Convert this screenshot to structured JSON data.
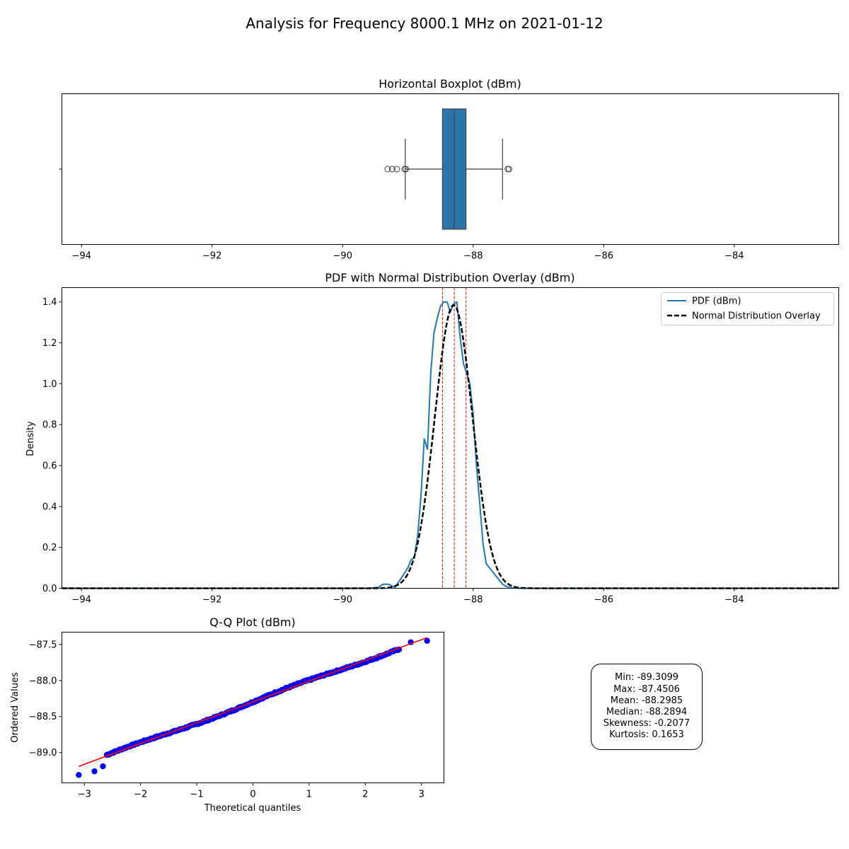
{
  "suptitle": "Analysis for Frequency 8000.1 MHz on 2021-01-12",
  "chart_data": [
    {
      "type": "boxplot",
      "title": "Horizontal Boxplot (dBm)",
      "orientation": "horizontal",
      "xlim": [
        -94.3,
        -82.4
      ],
      "xticks": [
        -94,
        -92,
        -90,
        -88,
        -86,
        -84
      ],
      "box": {
        "q1": -88.47,
        "median": -88.2894,
        "q3": -88.11,
        "whisker_low": -89.04,
        "whisker_high": -87.55
      },
      "outliers": [
        -89.31,
        -89.24,
        -89.17,
        -89.05,
        -89.03,
        -87.47,
        -87.45
      ],
      "color": "#2e75aa"
    },
    {
      "type": "line",
      "title": "PDF with Normal Distribution Overlay (dBm)",
      "ylabel": "Density",
      "xlim": [
        -94.3,
        -82.4
      ],
      "ylim": [
        0,
        1.47
      ],
      "xticks": [
        -94,
        -92,
        -90,
        -88,
        -86,
        -84
      ],
      "yticks": [
        0.0,
        0.2,
        0.4,
        0.6,
        0.8,
        1.0,
        1.2,
        1.4
      ],
      "legend_position": "top-right",
      "series": [
        {
          "name": "PDF (dBm)",
          "color": "#1f77b4",
          "style": "solid",
          "x": [
            -94.3,
            -89.6,
            -89.45,
            -89.38,
            -89.3,
            -89.2,
            -89.1,
            -89.0,
            -88.95,
            -88.9,
            -88.85,
            -88.8,
            -88.75,
            -88.7,
            -88.65,
            -88.6,
            -88.55,
            -88.5,
            -88.45,
            -88.4,
            -88.35,
            -88.3,
            -88.25,
            -88.2,
            -88.15,
            -88.1,
            -88.05,
            -88.0,
            -87.95,
            -87.9,
            -87.85,
            -87.8,
            -87.75,
            -87.7,
            -87.65,
            -87.6,
            -87.55,
            -87.5,
            -87.45,
            -87.4,
            -87.3,
            -82.4
          ],
          "y": [
            0,
            0,
            0.005,
            0.02,
            0.02,
            0.005,
            0.05,
            0.1,
            0.14,
            0.15,
            0.26,
            0.45,
            0.73,
            0.68,
            1.05,
            1.25,
            1.32,
            1.38,
            1.4,
            1.4,
            1.35,
            1.39,
            1.4,
            1.23,
            1.1,
            1.05,
            1.0,
            0.85,
            0.6,
            0.42,
            0.22,
            0.12,
            0.1,
            0.08,
            0.06,
            0.04,
            0.02,
            0.01,
            0.005,
            0.002,
            0,
            0
          ]
        },
        {
          "name": "Normal Distribution Overlay",
          "color": "#000000",
          "style": "dashed",
          "mean": -88.2985,
          "std": 0.288
        }
      ],
      "vlines": [
        {
          "x": -88.47,
          "color": "#ff0000",
          "style": "dashed"
        },
        {
          "x": -88.2894,
          "color": "#ff0000",
          "style": "dashed"
        },
        {
          "x": -88.11,
          "color": "#ff0000",
          "style": "dashed"
        }
      ]
    },
    {
      "type": "scatter",
      "title": "Q-Q Plot (dBm)",
      "xlabel": "Theoretical quantiles",
      "ylabel": "Ordered Values",
      "xlim": [
        -3.4,
        3.4
      ],
      "ylim": [
        -89.42,
        -87.33
      ],
      "xticks": [
        -3,
        -2,
        -1,
        0,
        1,
        2,
        3
      ],
      "yticks": [
        -89.0,
        -88.5,
        -88.0,
        -87.5
      ],
      "fit_line": {
        "slope": 0.288,
        "intercept": -88.2985,
        "color": "#ff0000"
      },
      "point_color": "#0000ff",
      "extreme_points": [
        {
          "x": -3.1,
          "y": -89.31
        },
        {
          "x": -2.82,
          "y": -89.26
        },
        {
          "x": -2.67,
          "y": -89.19
        },
        {
          "x": 2.81,
          "y": -87.47
        },
        {
          "x": 3.1,
          "y": -87.45
        }
      ]
    }
  ],
  "stats": {
    "lines": [
      "Min: -89.3099",
      "Max: -87.4506",
      "Mean: -88.2985",
      "Median: -88.2894",
      "Skewness: -0.2077",
      "Kurtosis: 0.1653"
    ]
  }
}
